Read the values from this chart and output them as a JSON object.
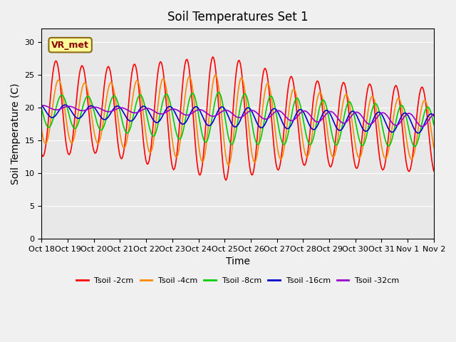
{
  "title": "Soil Temperatures Set 1",
  "xlabel": "Time",
  "ylabel": "Soil Temperature (C)",
  "ylim": [
    0,
    32
  ],
  "yticks": [
    0,
    5,
    10,
    15,
    20,
    25,
    30
  ],
  "fig_bg_color": "#f0f0f0",
  "plot_bg_color": "#e8e8e8",
  "series_colors": [
    "#ff0000",
    "#ff8800",
    "#00cc00",
    "#0000cc",
    "#9900cc"
  ],
  "series_labels": [
    "Tsoil -2cm",
    "Tsoil -4cm",
    "Tsoil -8cm",
    "Tsoil -16cm",
    "Tsoil -32cm"
  ],
  "xtick_labels": [
    "Oct 18",
    "Oct 19",
    "Oct 20",
    "Oct 21",
    "Oct 22",
    "Oct 23",
    "Oct 24",
    "Oct 25",
    "Oct 26",
    "Oct 27",
    "Oct 28",
    "Oct 29",
    "Oct 30",
    "Oct 31",
    "Nov 1",
    "Nov 2"
  ],
  "n_days": 15,
  "annotation_text": "VR_met"
}
